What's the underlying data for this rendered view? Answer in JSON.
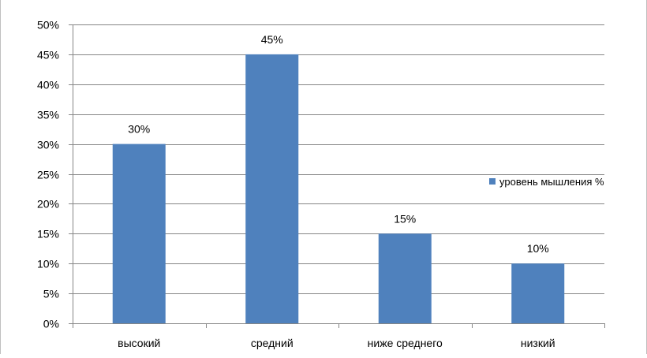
{
  "chart_data": {
    "type": "bar",
    "categories": [
      "высокий",
      "средний",
      "ниже среднего",
      "низкий"
    ],
    "series": [
      {
        "name": "уровень мышления %",
        "values": [
          30,
          45,
          15,
          10
        ],
        "color": "#4f81bd"
      }
    ],
    "data_labels": [
      "30%",
      "45%",
      "15%",
      "10%"
    ],
    "y_ticks": [
      "0%",
      "5%",
      "10%",
      "15%",
      "20%",
      "25%",
      "30%",
      "35%",
      "40%",
      "45%",
      "50%"
    ],
    "ylim": [
      0,
      50
    ],
    "y_unit": "%",
    "grid": true,
    "legend_position": "right",
    "gridline_color": "#868686",
    "axis_color": "#868686"
  }
}
